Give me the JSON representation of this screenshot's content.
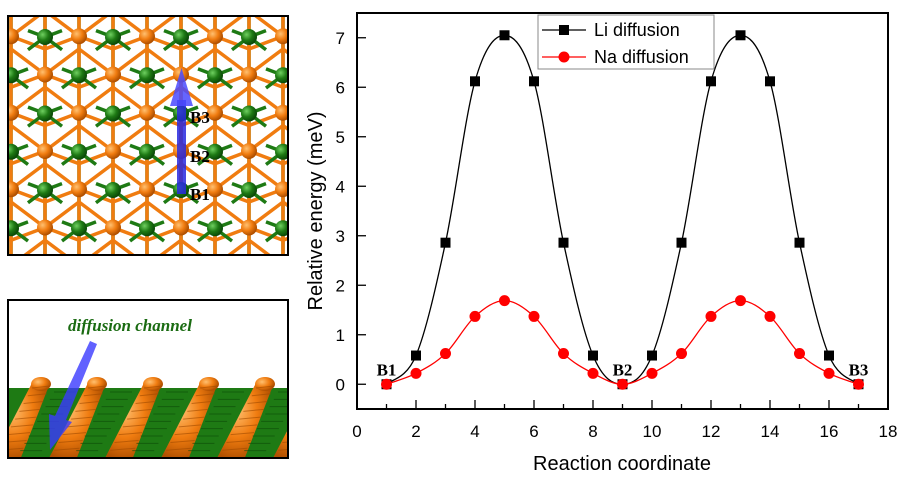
{
  "figure": {
    "top_panel": {
      "description": "Top view of lattice with diffusion path",
      "site_labels": [
        "B1",
        "B2",
        "B3"
      ],
      "atom_colors": {
        "metal": "#f07c10",
        "nonmetal": "#1e7a14"
      },
      "arrow_color": "#3a3aff"
    },
    "bottom_panel": {
      "description": "Side view showing diffusion channel",
      "label": "diffusion channel",
      "label_color": "#1a6b12"
    }
  },
  "chart_data": {
    "type": "line",
    "title": "",
    "xlabel": "Reaction coordinate",
    "ylabel": "Relative energy (meV)",
    "xlim": [
      0,
      18
    ],
    "ylim": [
      -0.5,
      7.5
    ],
    "xticks": [
      0,
      2,
      4,
      6,
      8,
      10,
      12,
      14,
      16,
      18
    ],
    "yticks": [
      0,
      1,
      2,
      3,
      4,
      5,
      6,
      7
    ],
    "grid": false,
    "legend_position": "top-center",
    "x": [
      1,
      2,
      3,
      4,
      5,
      6,
      7,
      8,
      9,
      10,
      11,
      12,
      13,
      14,
      15,
      16,
      17
    ],
    "series": [
      {
        "name": "Li diffusion",
        "color": "#000000",
        "marker": "square",
        "values": [
          0,
          0.58,
          2.86,
          6.12,
          7.05,
          6.12,
          2.86,
          0.58,
          0,
          0.58,
          2.86,
          6.12,
          7.05,
          6.12,
          2.86,
          0.58,
          0
        ]
      },
      {
        "name": "Na diffusion",
        "color": "#ff0000",
        "marker": "circle",
        "values": [
          0,
          0.22,
          0.62,
          1.37,
          1.69,
          1.37,
          0.62,
          0.22,
          0,
          0.22,
          0.62,
          1.37,
          1.69,
          1.37,
          0.62,
          0.22,
          0
        ]
      }
    ],
    "annotations": [
      {
        "text": "B1",
        "x": 1
      },
      {
        "text": "B2",
        "x": 9
      },
      {
        "text": "B3",
        "x": 17
      }
    ]
  }
}
